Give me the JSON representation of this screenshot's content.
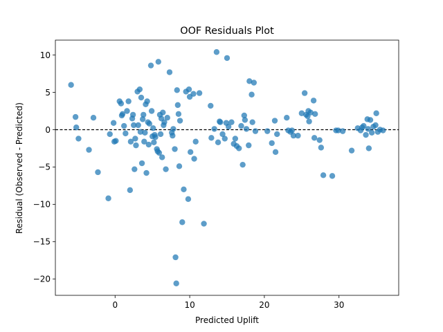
{
  "chart_data": {
    "type": "scatter",
    "title": "OOF Residuals Plot",
    "xlabel": "Predicted Uplift",
    "ylabel": "Residual (Observed - Predicted)",
    "xlim": [
      -8,
      38
    ],
    "ylim": [
      -22.2,
      12
    ],
    "xticks": [
      0,
      10,
      20,
      30
    ],
    "xtick_labels": [
      "0",
      "10",
      "20",
      "30"
    ],
    "yticks": [
      -20,
      -15,
      -10,
      -5,
      0,
      5,
      10
    ],
    "ytick_labels": [
      "−20",
      "−15",
      "−10",
      "−5",
      "0",
      "5",
      "10"
    ],
    "reference_line": {
      "y": 0,
      "style": "dashed",
      "color": "#000000"
    },
    "grid": false,
    "legend": "none",
    "marker_color": "#1f77b4",
    "points": [
      [
        -5.9,
        6.0
      ],
      [
        -5.3,
        1.7
      ],
      [
        -5.2,
        0.3
      ],
      [
        -4.9,
        -1.2
      ],
      [
        -3.5,
        -2.7
      ],
      [
        -2.9,
        1.6
      ],
      [
        -2.3,
        -5.7
      ],
      [
        -0.9,
        -9.2
      ],
      [
        -0.7,
        -0.6
      ],
      [
        -0.2,
        0.9
      ],
      [
        -0.1,
        -1.6
      ],
      [
        0.1,
        -1.5
      ],
      [
        0.6,
        3.8
      ],
      [
        0.8,
        3.5
      ],
      [
        0.9,
        1.9
      ],
      [
        1.0,
        2.1
      ],
      [
        1.2,
        0.5
      ],
      [
        1.4,
        -0.5
      ],
      [
        1.6,
        2.5
      ],
      [
        1.8,
        3.8
      ],
      [
        2.0,
        -8.1
      ],
      [
        2.1,
        -1.6
      ],
      [
        2.3,
        1.5
      ],
      [
        2.4,
        2.0
      ],
      [
        2.5,
        0.6
      ],
      [
        2.6,
        -5.3
      ],
      [
        2.7,
        -1.2
      ],
      [
        2.8,
        -2.1
      ],
      [
        3.0,
        5.1
      ],
      [
        3.1,
        0.6
      ],
      [
        3.3,
        5.4
      ],
      [
        3.4,
        -0.3
      ],
      [
        3.5,
        4.3
      ],
      [
        3.6,
        -4.5
      ],
      [
        3.7,
        1.4
      ],
      [
        3.8,
        2.0
      ],
      [
        3.9,
        -1.6
      ],
      [
        4.0,
        -0.4
      ],
      [
        4.1,
        3.4
      ],
      [
        4.2,
        -5.8
      ],
      [
        4.3,
        3.8
      ],
      [
        4.4,
        1.0
      ],
      [
        4.5,
        -2.0
      ],
      [
        4.6,
        0.8
      ],
      [
        4.8,
        8.6
      ],
      [
        4.9,
        2.5
      ],
      [
        5.0,
        -0.9
      ],
      [
        5.1,
        0.2
      ],
      [
        5.2,
        -1.7
      ],
      [
        5.3,
        -0.7
      ],
      [
        5.4,
        -1.0
      ],
      [
        5.6,
        -2.6
      ],
      [
        5.7,
        -2.9
      ],
      [
        5.8,
        9.1
      ],
      [
        5.9,
        -3.1
      ],
      [
        6.0,
        2.0
      ],
      [
        6.1,
        -0.6
      ],
      [
        6.2,
        1.5
      ],
      [
        6.3,
        -3.7
      ],
      [
        6.4,
        2.3
      ],
      [
        6.5,
        0.6
      ],
      [
        6.6,
        1.0
      ],
      [
        6.8,
        -5.3
      ],
      [
        7.0,
        1.6
      ],
      [
        7.3,
        7.7
      ],
      [
        7.6,
        -0.4
      ],
      [
        7.7,
        -0.8
      ],
      [
        7.8,
        0.1
      ],
      [
        8.0,
        -2.6
      ],
      [
        8.1,
        -17.1
      ],
      [
        8.2,
        -20.6
      ],
      [
        8.3,
        5.3
      ],
      [
        8.4,
        3.3
      ],
      [
        8.5,
        2.1
      ],
      [
        8.6,
        -4.9
      ],
      [
        8.7,
        1.2
      ],
      [
        9.0,
        -12.4
      ],
      [
        9.2,
        -8.0
      ],
      [
        9.5,
        5.1
      ],
      [
        9.8,
        -9.3
      ],
      [
        9.9,
        5.4
      ],
      [
        10.0,
        4.4
      ],
      [
        10.1,
        -3.0
      ],
      [
        10.5,
        4.8
      ],
      [
        10.6,
        -3.9
      ],
      [
        10.8,
        -1.6
      ],
      [
        11.3,
        4.9
      ],
      [
        11.9,
        -12.6
      ],
      [
        12.8,
        3.2
      ],
      [
        12.9,
        -1.1
      ],
      [
        13.3,
        0.1
      ],
      [
        13.6,
        10.4
      ],
      [
        13.8,
        -1.7
      ],
      [
        14.0,
        1.1
      ],
      [
        14.1,
        1.0
      ],
      [
        14.4,
        -0.6
      ],
      [
        14.7,
        -1.2
      ],
      [
        14.9,
        0.9
      ],
      [
        15.0,
        9.6
      ],
      [
        15.2,
        0.4
      ],
      [
        15.6,
        1.0
      ],
      [
        15.9,
        -1.9
      ],
      [
        16.1,
        -1.2
      ],
      [
        16.3,
        -2.2
      ],
      [
        16.6,
        -2.5
      ],
      [
        16.9,
        0.5
      ],
      [
        17.1,
        -4.7
      ],
      [
        17.3,
        1.9
      ],
      [
        17.4,
        1.3
      ],
      [
        17.6,
        0.1
      ],
      [
        17.9,
        -2.1
      ],
      [
        18.0,
        6.5
      ],
      [
        18.3,
        4.7
      ],
      [
        18.4,
        1.0
      ],
      [
        18.6,
        6.3
      ],
      [
        18.8,
        -0.2
      ],
      [
        20.4,
        -0.2
      ],
      [
        21.0,
        -1.8
      ],
      [
        21.4,
        1.2
      ],
      [
        21.5,
        -3.0
      ],
      [
        21.7,
        -0.6
      ],
      [
        23.0,
        1.6
      ],
      [
        23.2,
        -0.1
      ],
      [
        23.5,
        -0.3
      ],
      [
        23.7,
        -0.1
      ],
      [
        23.9,
        -0.8
      ],
      [
        24.5,
        -0.8
      ],
      [
        25.0,
        2.2
      ],
      [
        25.4,
        4.9
      ],
      [
        25.6,
        2.0
      ],
      [
        25.8,
        1.8
      ],
      [
        25.9,
        2.5
      ],
      [
        26.0,
        1.1
      ],
      [
        26.2,
        2.3
      ],
      [
        26.6,
        3.9
      ],
      [
        26.8,
        2.1
      ],
      [
        26.7,
        -1.1
      ],
      [
        27.4,
        -1.4
      ],
      [
        27.6,
        -2.4
      ],
      [
        27.9,
        -6.1
      ],
      [
        29.1,
        -6.2
      ],
      [
        29.6,
        -0.1
      ],
      [
        29.9,
        -0.1
      ],
      [
        30.5,
        -0.2
      ],
      [
        31.7,
        -2.8
      ],
      [
        32.5,
        0.2
      ],
      [
        32.9,
        -0.1
      ],
      [
        33.1,
        0.3
      ],
      [
        33.3,
        0.5
      ],
      [
        33.6,
        -0.7
      ],
      [
        33.8,
        1.4
      ],
      [
        33.9,
        0.1
      ],
      [
        34.0,
        -2.5
      ],
      [
        34.2,
        1.3
      ],
      [
        34.4,
        -0.4
      ],
      [
        34.6,
        0.4
      ],
      [
        34.9,
        0.6
      ],
      [
        35.0,
        2.2
      ],
      [
        35.2,
        -0.3
      ],
      [
        35.5,
        0.0
      ],
      [
        35.9,
        -0.1
      ]
    ]
  }
}
